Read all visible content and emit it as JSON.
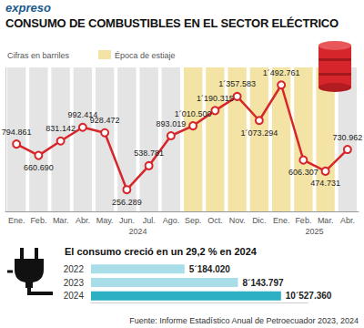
{
  "header": {
    "brand": "expreso",
    "title": "CONSUMO DE COMBUSTIBLES EN EL SECTOR ELÉCTRICO"
  },
  "source": "Fuente: Informe Estadístico Anual de Petroecuador 2023, 2024",
  "chart_data": [
    {
      "type": "line",
      "subtitle": "Cifras en barriles",
      "categories": [
        "Ene.",
        "Feb.",
        "Mar.",
        "Abr.",
        "May.",
        "Jun.",
        "Jul.",
        "Ago.",
        "Sep.",
        "Oct.",
        "Nov.",
        "Dic.",
        "Ene.",
        "Feb.",
        "Mar.",
        "Abr."
      ],
      "years": [
        "2024",
        "2024",
        "2024",
        "2024",
        "2024",
        "2024",
        "2024",
        "2024",
        "2024",
        "2024",
        "2024",
        "2024",
        "2025",
        "2025",
        "2025",
        "2025"
      ],
      "values": [
        794861,
        660690,
        831142,
        992414,
        928472,
        256289,
        538781,
        893019,
        1010500,
        1190315,
        1357583,
        1073294,
        1492761,
        606307,
        474731,
        730962
      ],
      "value_labels": [
        "794.861",
        "660.690",
        "831.142",
        "992.414",
        "928.472",
        "256.289",
        "538.781",
        "893.019",
        "1´010.500",
        "1´190.315",
        "1´357.583",
        "1´073.294",
        "1´492.761",
        "606.307",
        "474.731",
        "730.962"
      ],
      "color": "#d7262b",
      "marker": "circle",
      "data_labels": true,
      "tick_labels": "x",
      "grid": false,
      "ylim": [
        0,
        1700000
      ],
      "yticks": [],
      "highlight": {
        "label": "Época de estiaje",
        "color": "#f3e4a6",
        "flags": [
          false,
          false,
          false,
          false,
          false,
          false,
          false,
          false,
          true,
          true,
          true,
          true,
          true,
          true,
          true,
          false
        ]
      }
    },
    {
      "type": "bar",
      "title": "El consumo creció en un 29,2 % en 2024",
      "orientation": "horizontal",
      "categories": [
        "2022",
        "2023",
        "2024"
      ],
      "values": [
        5184020,
        8143797,
        10527360
      ],
      "value_labels": [
        "5´184.020",
        "8´143.797",
        "10´527.360"
      ],
      "colors": [
        "#a9dde8",
        "#a9dde8",
        "#2bb0c4"
      ],
      "data_labels": true,
      "tick_labels": "y",
      "grid": false,
      "xlim": [
        0,
        12000000
      ],
      "xticks": []
    }
  ]
}
